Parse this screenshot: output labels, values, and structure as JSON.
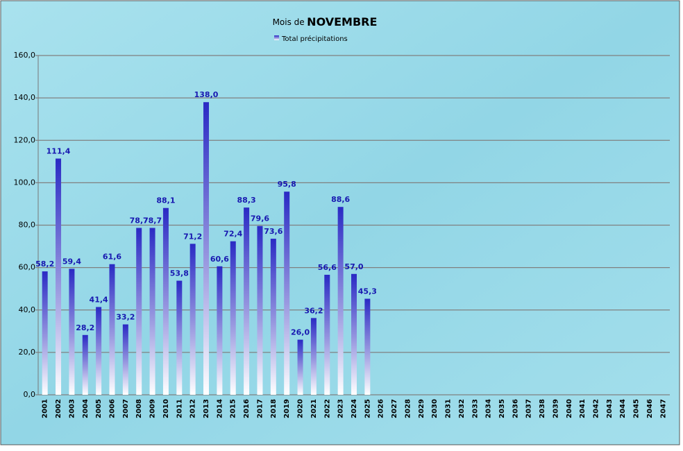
{
  "chart_data": {
    "type": "bar",
    "title": [
      "Mois de",
      "NOVEMBRE"
    ],
    "categories": [
      "2001",
      "2002",
      "2003",
      "2004",
      "2005",
      "2006",
      "2007",
      "2008",
      "2009",
      "2010",
      "2011",
      "2012",
      "2013",
      "2014",
      "2015",
      "2016",
      "2017",
      "2018",
      "2019",
      "2020",
      "2021",
      "2022",
      "2023",
      "2024",
      "2025",
      "2026",
      "2027",
      "2028",
      "2029",
      "2030",
      "2031",
      "2032",
      "2033",
      "2034",
      "2035",
      "2036",
      "2037",
      "2038",
      "2039",
      "2040",
      "2041",
      "2042",
      "2043",
      "2044",
      "2045",
      "2046",
      "2047"
    ],
    "series": [
      {
        "name": "Total précipitations",
        "color": "#3030c8",
        "values": [
          58.2,
          111.4,
          59.4,
          28.2,
          41.4,
          61.6,
          33.2,
          78.7,
          78.7,
          88.1,
          53.8,
          71.2,
          138.0,
          60.6,
          72.4,
          88.3,
          79.6,
          73.6,
          95.8,
          26.0,
          36.2,
          56.6,
          88.6,
          57.0,
          45.3,
          null,
          null,
          null,
          null,
          null,
          null,
          null,
          null,
          null,
          null,
          null,
          null,
          null,
          null,
          null,
          null,
          null,
          null,
          null,
          null,
          null,
          null
        ],
        "value_labels": [
          "58,2",
          "111,4",
          "59,4",
          "28,2",
          "41,4",
          "61,6",
          "33,2",
          "78,7",
          "78,7",
          "88,1",
          "53,8",
          "71,2",
          "138,0",
          "60,6",
          "72,4",
          "88,3",
          "79,6",
          "73,6",
          "95,8",
          "26,0",
          "36,2",
          "56,6",
          "88,6",
          "57,0",
          "45,3",
          null,
          null,
          null,
          null,
          null,
          null,
          null,
          null,
          null,
          null,
          null,
          null,
          null,
          null,
          null,
          null,
          null,
          null,
          null,
          null,
          null,
          null
        ]
      }
    ],
    "ylim": [
      0,
      160
    ],
    "yticks": [
      {
        "value": 0,
        "label": "0,0"
      },
      {
        "value": 20,
        "label": "20,0"
      },
      {
        "value": 40,
        "label": "40,0"
      },
      {
        "value": 60,
        "label": "60,0"
      },
      {
        "value": 80,
        "label": "80,0"
      },
      {
        "value": 100,
        "label": "100,0"
      },
      {
        "value": 120,
        "label": "120,0"
      },
      {
        "value": 140,
        "label": "140,0"
      },
      {
        "value": 160,
        "label": "160,0"
      }
    ],
    "grid": true,
    "legend": "top"
  }
}
